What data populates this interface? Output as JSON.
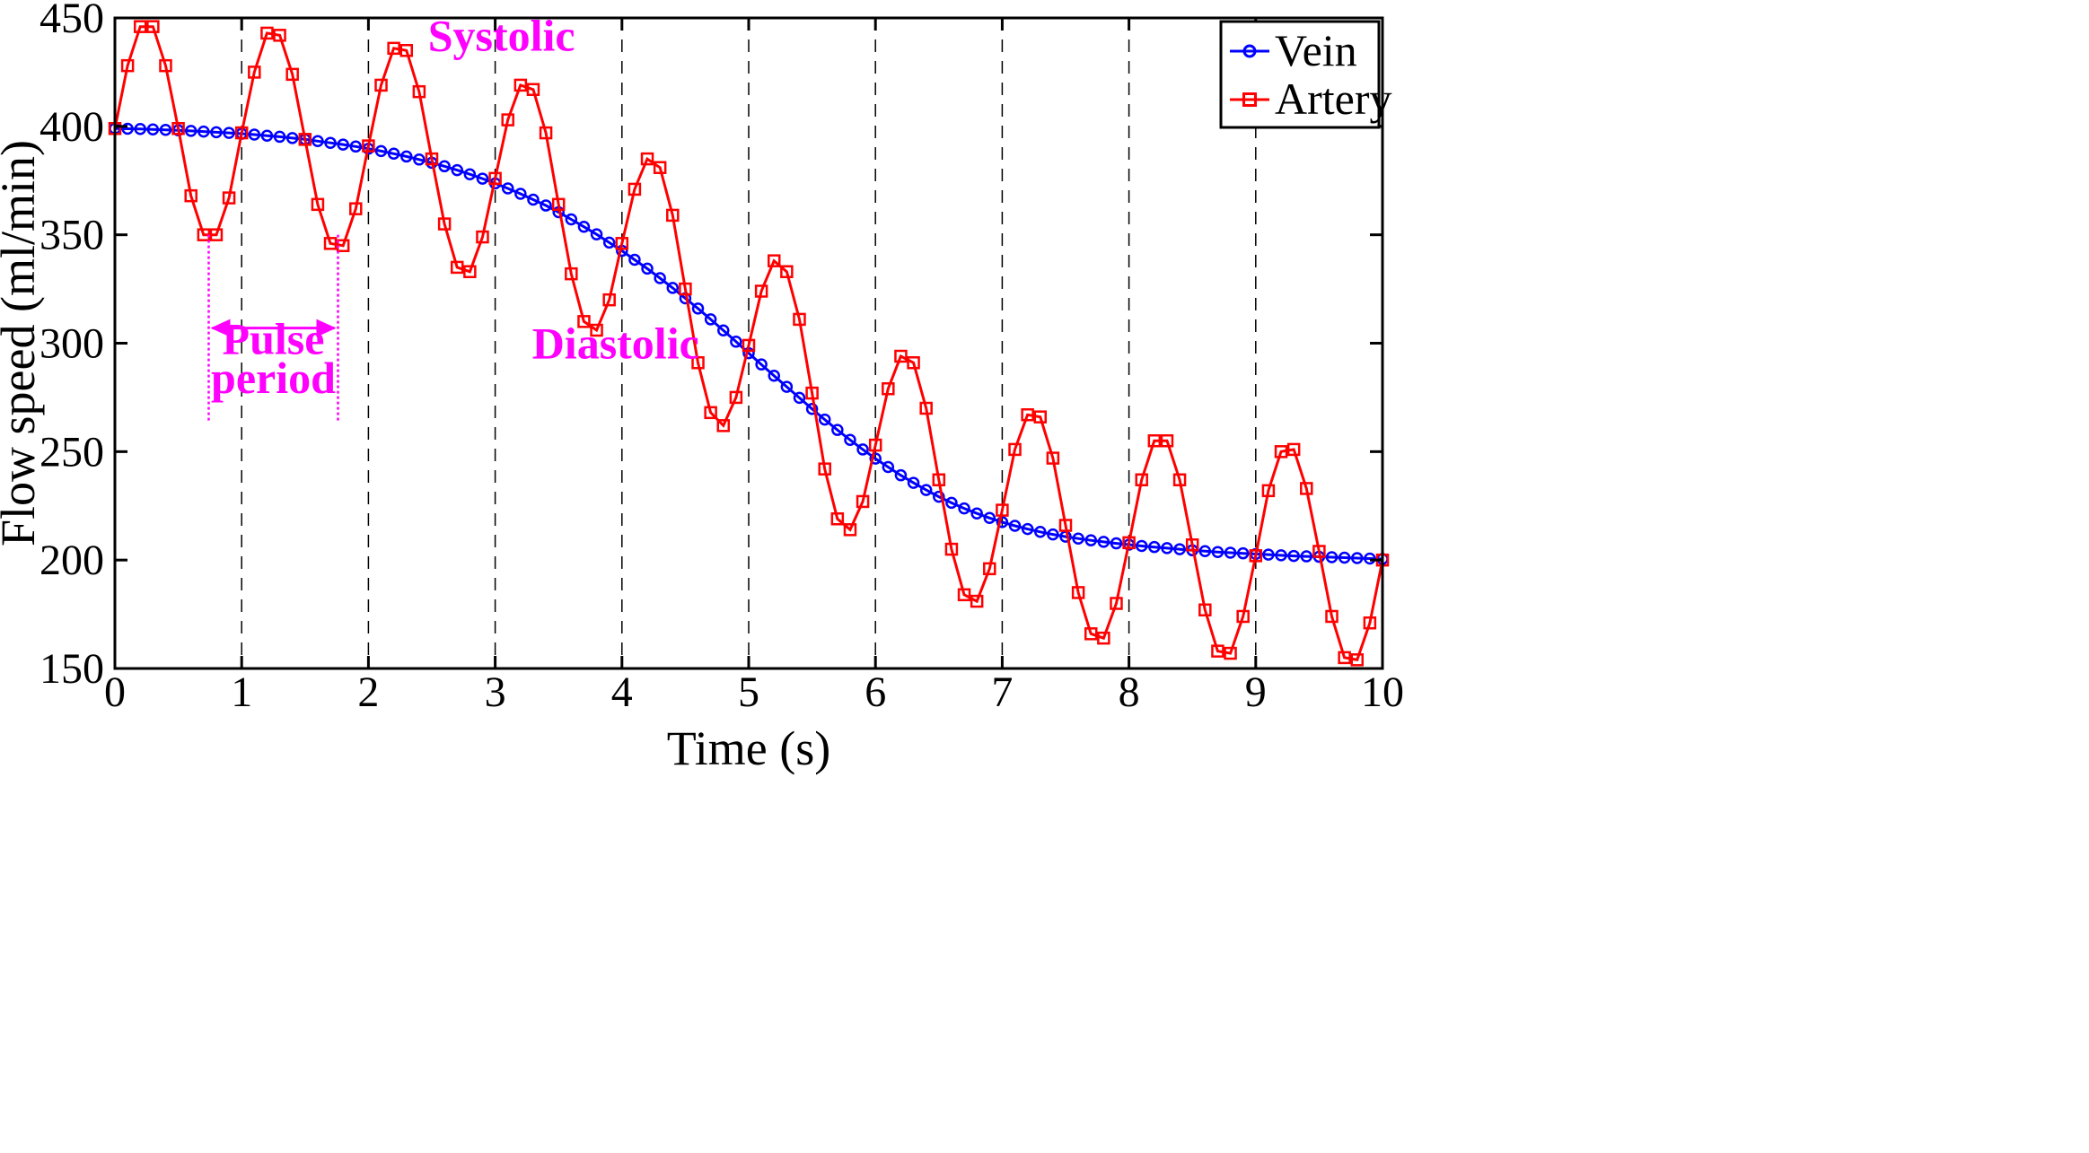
{
  "chart_data": {
    "type": "line",
    "title": "",
    "xlabel": "Time (s)",
    "ylabel": "Flow speed (ml/min)",
    "xlim": [
      0,
      10
    ],
    "ylim": [
      150,
      450
    ],
    "xticks": [
      0,
      1,
      2,
      3,
      4,
      5,
      6,
      7,
      8,
      9,
      10
    ],
    "yticks": [
      150,
      200,
      250,
      300,
      350,
      400,
      450
    ],
    "xtick_labels": [
      "0",
      "1",
      "2",
      "3",
      "4",
      "5",
      "6",
      "7",
      "8",
      "9",
      "10"
    ],
    "ytick_labels": [
      "150",
      "200",
      "250",
      "300",
      "350",
      "400",
      "450"
    ],
    "grid": "vertical dashed lines at integer seconds",
    "legend": {
      "position": "top-right",
      "entries": [
        "Vein",
        "Artery"
      ]
    },
    "series": [
      {
        "name": "Vein",
        "color": "#0000ff",
        "marker": "circle",
        "x": [
          0,
          0.1,
          0.2,
          0.3,
          0.4,
          0.5,
          0.6,
          0.7,
          0.8,
          0.9,
          1,
          1.1,
          1.2,
          1.3,
          1.4,
          1.5,
          1.6,
          1.7,
          1.8,
          1.9,
          2,
          2.1,
          2.2,
          2.3,
          2.4,
          2.5,
          2.6,
          2.7,
          2.8,
          2.9,
          3,
          3.1,
          3.2,
          3.3,
          3.4,
          3.5,
          3.6,
          3.7,
          3.8,
          3.9,
          4,
          4.1,
          4.2,
          4.3,
          4.4,
          4.5,
          4.6,
          4.7,
          4.8,
          4.9,
          5,
          5.1,
          5.2,
          5.3,
          5.4,
          5.5,
          5.6,
          5.7,
          5.8,
          5.9,
          6,
          6.1,
          6.2,
          6.3,
          6.4,
          6.5,
          6.6,
          6.7,
          6.8,
          6.9,
          7,
          7.1,
          7.2,
          7.3,
          7.4,
          7.5,
          7.6,
          7.7,
          7.8,
          7.9,
          8,
          8.1,
          8.2,
          8.3,
          8.4,
          8.5,
          8.6,
          8.7,
          8.8,
          8.9,
          9,
          9.1,
          9.2,
          9.3,
          9.4,
          9.5,
          9.6,
          9.7,
          9.8,
          9.9,
          10
        ],
        "values": [
          399,
          398.9,
          398.8,
          398.6,
          398.4,
          398.2,
          397.9,
          397.6,
          397.3,
          397,
          396.6,
          396.2,
          395.7,
          395.2,
          394.6,
          394,
          393.2,
          392.4,
          391.6,
          390.7,
          389.7,
          388.6,
          387.4,
          386.1,
          384.7,
          383.2,
          381.6,
          379.8,
          377.9,
          375.9,
          373.7,
          371.4,
          368.9,
          366.2,
          363.5,
          360.4,
          357.1,
          353.7,
          350.2,
          346.4,
          342.6,
          338.5,
          334.4,
          330.0,
          325.5,
          320.7,
          316.0,
          311.0,
          305.9,
          300.7,
          295.4,
          290.2,
          285.0,
          279.9,
          274.8,
          269.7,
          264.8,
          260.0,
          255.4,
          251.0,
          246.8,
          242.9,
          239.1,
          235.6,
          232.3,
          229.2,
          226.4,
          223.8,
          221.5,
          219.4,
          217.5,
          215.8,
          214.3,
          213.0,
          211.8,
          210.8,
          209.9,
          209.1,
          208.4,
          207.7,
          207.1,
          206.5,
          206.0,
          205.5,
          205.0,
          204.5,
          204.1,
          203.7,
          203.4,
          203.1,
          202.8,
          202.5,
          202.2,
          201.9,
          201.7,
          201.5,
          201.3,
          201.1,
          200.9,
          200.7,
          200.5
        ]
      },
      {
        "name": "Artery",
        "color": "#ff0000",
        "marker": "square",
        "x": [
          0,
          0.1,
          0.2,
          0.3,
          0.4,
          0.5,
          0.6,
          0.7,
          0.8,
          0.9,
          1,
          1.1,
          1.2,
          1.3,
          1.4,
          1.5,
          1.6,
          1.7,
          1.8,
          1.9,
          2,
          2.1,
          2.2,
          2.3,
          2.4,
          2.5,
          2.6,
          2.7,
          2.8,
          2.9,
          3,
          3.1,
          3.2,
          3.3,
          3.4,
          3.5,
          3.6,
          3.7,
          3.8,
          3.9,
          4,
          4.1,
          4.2,
          4.3,
          4.4,
          4.5,
          4.6,
          4.7,
          4.8,
          4.9,
          5,
          5.1,
          5.2,
          5.3,
          5.4,
          5.5,
          5.6,
          5.7,
          5.8,
          5.9,
          6,
          6.1,
          6.2,
          6.3,
          6.4,
          6.5,
          6.6,
          6.7,
          6.8,
          6.9,
          7,
          7.1,
          7.2,
          7.3,
          7.4,
          7.5,
          7.6,
          7.7,
          7.8,
          7.9,
          8,
          8.1,
          8.2,
          8.3,
          8.4,
          8.5,
          8.6,
          8.7,
          8.8,
          8.9,
          9,
          9.1,
          9.2,
          9.3,
          9.4,
          9.5,
          9.6,
          9.7,
          9.8,
          9.9,
          10
        ],
        "values": [
          399,
          428,
          446,
          446,
          428,
          399,
          368,
          350,
          350,
          367,
          397,
          425,
          443,
          442,
          424,
          394,
          364,
          346,
          345,
          362,
          391,
          419,
          436,
          435,
          416,
          385,
          355,
          335,
          333,
          349,
          376,
          403,
          419,
          417,
          397,
          364,
          332,
          310,
          306,
          320,
          346,
          371,
          385,
          381,
          359,
          325,
          291,
          268,
          262,
          275,
          299,
          324,
          338,
          333,
          311,
          277,
          242,
          219,
          214,
          227,
          253,
          279,
          294,
          291,
          270,
          237,
          205,
          184,
          181,
          196,
          223,
          251,
          267,
          266,
          247,
          216,
          185,
          166,
          164,
          180,
          208,
          237,
          255,
          255,
          237,
          207,
          177,
          158,
          157,
          174,
          202,
          232,
          250,
          251,
          233,
          204,
          174,
          155,
          154,
          171,
          200
        ]
      }
    ],
    "annotations": [
      {
        "text": "Systolic",
        "x": 3.05,
        "y": 435
      },
      {
        "text": "Diastolic",
        "x": 3.95,
        "y": 293
      },
      {
        "text": "Pulse",
        "x": 1.25,
        "y": 295
      },
      {
        "text": "period",
        "x": 1.25,
        "y": 277
      }
    ],
    "pulse_period_marker": {
      "x_start": 0.74,
      "x_end": 1.76,
      "arrow_y": 307,
      "line_top": 350,
      "line_bottom": 264
    },
    "annotation_color": "#ff00ff"
  }
}
